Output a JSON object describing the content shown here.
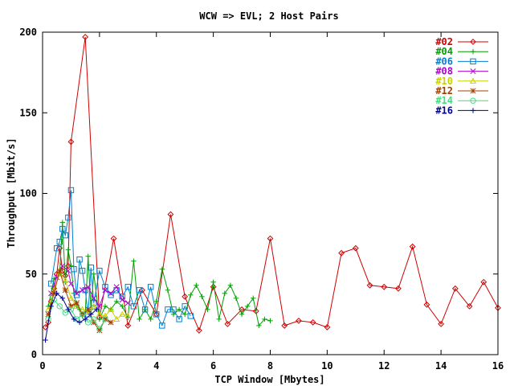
{
  "chart_data": {
    "type": "line",
    "title": "WCW => EVL; 2 Host Pairs",
    "xlabel": "TCP Window [Mbytes]",
    "ylabel": "Throughput [Mbit/s]",
    "xlim": [
      0,
      16
    ],
    "ylim": [
      0,
      200
    ],
    "xticks": [
      0,
      2,
      4,
      6,
      8,
      10,
      12,
      14,
      16
    ],
    "yticks": [
      0,
      50,
      100,
      150,
      200
    ],
    "legend_position": "top-right",
    "series": [
      {
        "name": "#02",
        "color": "#d00000",
        "marker": "diamond",
        "x": [
          0.1,
          0.2,
          0.3,
          0.4,
          0.5,
          0.6,
          0.7,
          0.8,
          0.9,
          1.0,
          1.5,
          2.0,
          2.5,
          3.0,
          3.5,
          4.0,
          4.5,
          5.0,
          5.5,
          6.0,
          6.5,
          7.0,
          7.5,
          8.0,
          8.5,
          9.0,
          9.5,
          10.0,
          10.5,
          11.0,
          11.5,
          12.0,
          12.5,
          13.0,
          13.5,
          14.0,
          14.5,
          15.0,
          15.5,
          16.0
        ],
        "y": [
          17,
          20,
          33,
          41,
          50,
          66,
          52,
          49,
          55,
          132,
          197,
          23,
          72,
          18,
          40,
          25,
          87,
          36,
          15,
          42,
          19,
          28,
          27,
          72,
          18,
          21,
          20,
          17,
          63,
          66,
          43,
          42,
          41,
          67,
          31,
          19,
          41,
          30,
          45,
          29
        ]
      },
      {
        "name": "#04",
        "color": "#00a000",
        "marker": "plus",
        "x": [
          0.2,
          0.4,
          0.6,
          0.7,
          0.8,
          0.9,
          1.0,
          1.1,
          1.2,
          1.3,
          1.4,
          1.5,
          1.6,
          1.7,
          1.8,
          2.0,
          2.2,
          2.4,
          2.6,
          2.8,
          3.0,
          3.2,
          3.4,
          3.6,
          3.8,
          4.0,
          4.2,
          4.4,
          4.6,
          4.8,
          5.0,
          5.2,
          5.4,
          5.6,
          5.8,
          6.0,
          6.2,
          6.4,
          6.6,
          6.8,
          7.0,
          7.2,
          7.4,
          7.6,
          7.8,
          8.0
        ],
        "y": [
          30,
          47,
          50,
          82,
          45,
          65,
          55,
          38,
          30,
          28,
          24,
          26,
          61,
          28,
          50,
          22,
          30,
          28,
          33,
          30,
          23,
          58,
          22,
          28,
          22,
          33,
          53,
          40,
          25,
          28,
          25,
          37,
          43,
          36,
          28,
          45,
          22,
          38,
          43,
          35,
          25,
          30,
          35,
          18,
          22,
          21
        ]
      },
      {
        "name": "#06",
        "color": "#0080d0",
        "marker": "square",
        "x": [
          0.3,
          0.5,
          0.6,
          0.7,
          0.8,
          0.9,
          1.0,
          1.1,
          1.2,
          1.3,
          1.4,
          1.5,
          1.6,
          1.7,
          1.8,
          2.0,
          2.2,
          2.4,
          2.6,
          2.8,
          3.0,
          3.2,
          3.4,
          3.6,
          3.8,
          4.0,
          4.2,
          4.4,
          4.6,
          4.8,
          5.0,
          5.2
        ],
        "y": [
          44,
          66,
          70,
          78,
          74,
          85,
          102,
          53,
          37,
          59,
          52,
          40,
          25,
          54,
          32,
          52,
          42,
          37,
          40,
          36,
          42,
          30,
          40,
          28,
          42,
          25,
          18,
          28,
          28,
          22,
          30,
          24
        ]
      },
      {
        "name": "#08",
        "color": "#b000d0",
        "marker": "x",
        "x": [
          0.3,
          0.5,
          0.7,
          0.9,
          1.0,
          1.2,
          1.4,
          1.6,
          1.8,
          2.0,
          2.2,
          2.4,
          2.6,
          2.8,
          3.0
        ],
        "y": [
          38,
          48,
          55,
          52,
          44,
          38,
          40,
          42,
          35,
          30,
          40,
          38,
          42,
          34,
          32
        ]
      },
      {
        "name": "#10",
        "color": "#c8d000",
        "marker": "triangle",
        "x": [
          0.2,
          0.4,
          0.6,
          0.8,
          1.0,
          1.2,
          1.4,
          1.6,
          1.8,
          2.0,
          2.2,
          2.4,
          2.6,
          2.8,
          3.0
        ],
        "y": [
          28,
          40,
          50,
          46,
          35,
          30,
          28,
          26,
          30,
          25,
          24,
          28,
          22,
          25,
          24
        ]
      },
      {
        "name": "#12",
        "color": "#a04000",
        "marker": "star",
        "x": [
          0.2,
          0.4,
          0.6,
          0.8,
          1.0,
          1.2,
          1.4,
          1.6,
          1.8,
          2.0,
          2.2,
          2.4
        ],
        "y": [
          25,
          38,
          52,
          40,
          30,
          32,
          25,
          28,
          20,
          15,
          22,
          20
        ]
      },
      {
        "name": "#14",
        "color": "#40e080",
        "marker": "circle",
        "x": [
          0.2,
          0.4,
          0.6,
          0.8,
          1.0,
          1.2,
          1.4,
          1.6,
          1.8,
          2.0,
          2.2
        ],
        "y": [
          22,
          34,
          30,
          26,
          28,
          22,
          25,
          20,
          22,
          16,
          22
        ]
      },
      {
        "name": "#16",
        "color": "#000090",
        "marker": "plus",
        "x": [
          0.1,
          0.3,
          0.5,
          0.7,
          0.9,
          1.1,
          1.3,
          1.5,
          1.7,
          1.9
        ],
        "y": [
          9,
          30,
          38,
          35,
          28,
          22,
          20,
          22,
          25,
          28
        ]
      }
    ]
  }
}
